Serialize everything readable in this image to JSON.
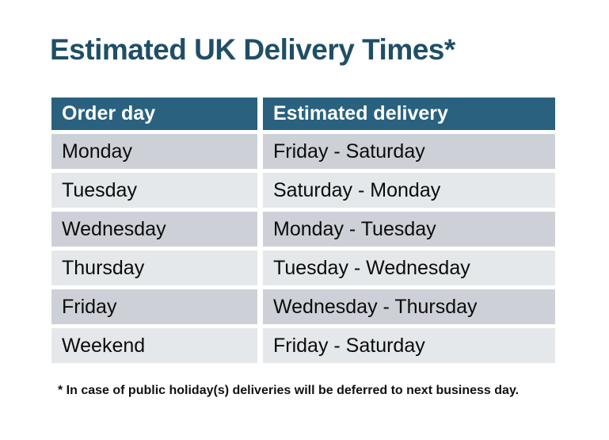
{
  "title": "Estimated UK Delivery Times*",
  "table": {
    "headers": {
      "order_day": "Order day",
      "estimated_delivery": "Estimated delivery"
    },
    "rows": [
      {
        "order_day": "Monday",
        "estimated_delivery": "Friday - Saturday"
      },
      {
        "order_day": "Tuesday",
        "estimated_delivery": "Saturday - Monday"
      },
      {
        "order_day": "Wednesday",
        "estimated_delivery": "Monday - Tuesday"
      },
      {
        "order_day": "Thursday",
        "estimated_delivery": "Tuesday - Wednesday"
      },
      {
        "order_day": "Friday",
        "estimated_delivery": "Wednesday - Thursday"
      },
      {
        "order_day": "Weekend",
        "estimated_delivery": "Friday - Saturday"
      }
    ]
  },
  "footnote": "* In case of public holiday(s) deliveries will be deferred to next business day.",
  "colors": {
    "title_text": "#1F4F66",
    "header_bg": "#29617F",
    "header_text": "#FFFFFF",
    "row_odd_bg": "#CDD1D7",
    "row_even_bg": "#E4E8EA",
    "cell_text": "#0B0B0B",
    "background": "#FFFFFF"
  }
}
